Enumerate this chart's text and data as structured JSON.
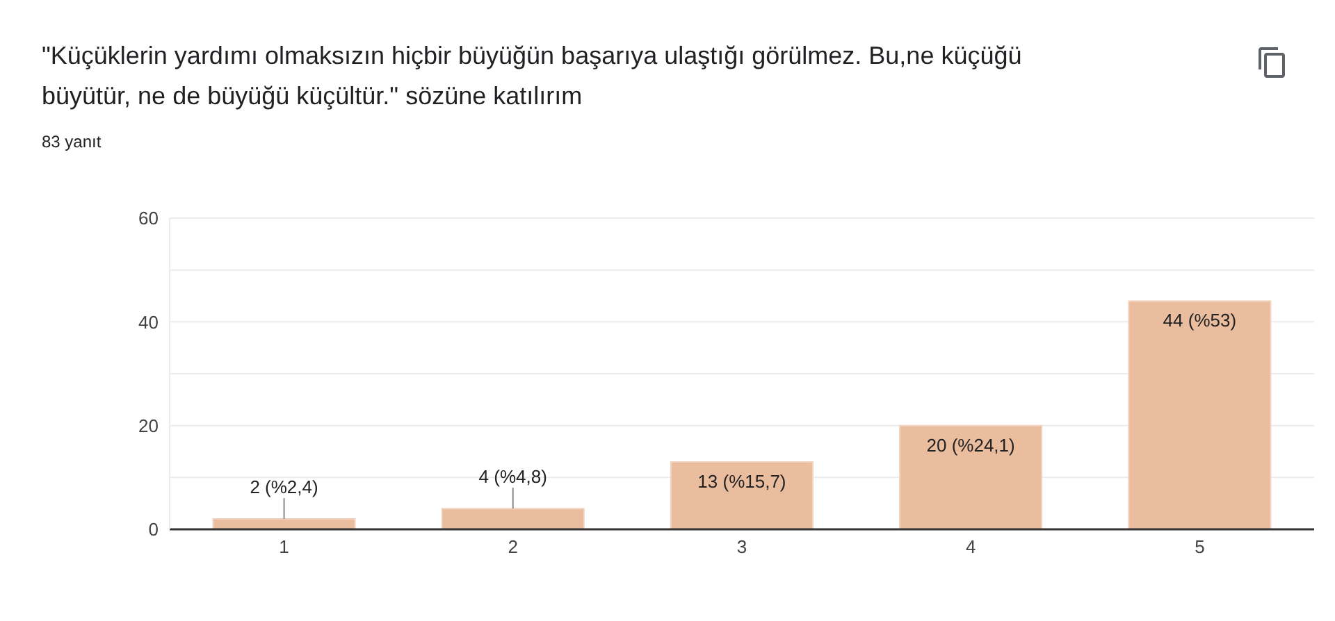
{
  "chart_data": {
    "type": "bar",
    "title": "\"Küçüklerin yardımı olmaksızın hiçbir büyüğün başarıya ulaştığı görülmez. Bu,ne küçüğü büyütür, ne de büyüğü küçültür.\" sözüne katılırım",
    "subtitle": "83 yanıt",
    "categories": [
      "1",
      "2",
      "3",
      "4",
      "5"
    ],
    "values": [
      2,
      4,
      13,
      20,
      44
    ],
    "value_labels": [
      "2 (%2,4)",
      "4 (%4,8)",
      "13 (%15,7)",
      "20 (%24,1)",
      "44 (%53)"
    ],
    "color": "#ebbd9f",
    "ylim": [
      0,
      60
    ],
    "yticks": [
      0,
      {
        "value": 10,
        "label": null
      },
      20,
      {
        "value": 30,
        "label": null
      },
      40,
      {
        "value": 50,
        "label": null
      },
      60
    ],
    "grid": "y"
  }
}
